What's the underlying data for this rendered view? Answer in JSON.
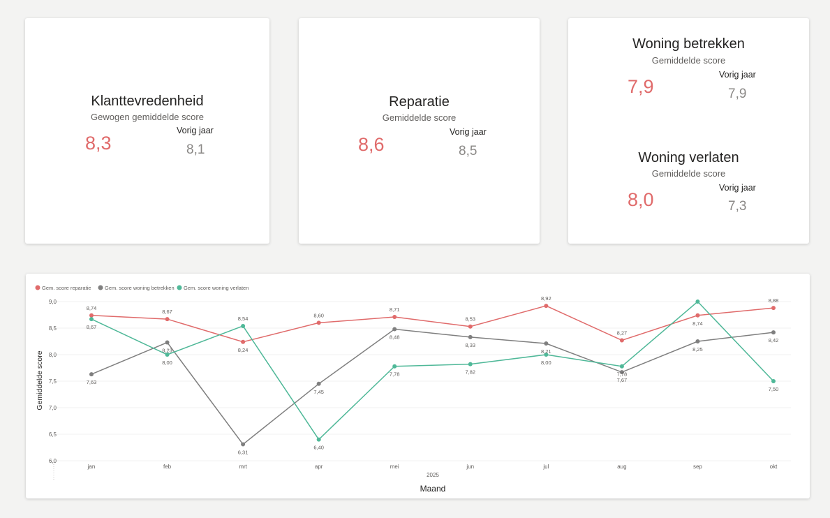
{
  "cards": {
    "klant": {
      "title": "Klanttevredenheid",
      "subtitle": "Gewogen gemiddelde score",
      "value": "8,3",
      "prev_label": "Vorig jaar",
      "prev_value": "8,1"
    },
    "reparatie": {
      "title": "Reparatie",
      "subtitle": "Gemiddelde score",
      "value": "8,6",
      "prev_label": "Vorig jaar",
      "prev_value": "8,5"
    },
    "betrekken": {
      "title": "Woning betrekken",
      "subtitle": "Gemiddelde score",
      "value": "7,9",
      "prev_label": "Vorig jaar",
      "prev_value": "7,9"
    },
    "verlaten": {
      "title": "Woning verlaten",
      "subtitle": "Gemiddelde score",
      "value": "8,0",
      "prev_label": "Vorig jaar",
      "prev_value": "7,3"
    }
  },
  "colors": {
    "accent_red": "#e06b6b",
    "series_gray": "#7f7f7f",
    "series_green": "#4fb898"
  },
  "chart_data": {
    "type": "line",
    "categories": [
      "jan",
      "feb",
      "mrt",
      "apr",
      "mei",
      "jun",
      "jul",
      "aug",
      "sep",
      "okt"
    ],
    "series": [
      {
        "name": "Gem. score reparatie",
        "color": "#e06b6b",
        "values": [
          8.74,
          8.67,
          8.24,
          8.6,
          8.71,
          8.53,
          8.92,
          8.27,
          8.74,
          8.88
        ],
        "labels": [
          "8,74",
          "8,67",
          "8,24",
          "8,60",
          "8,71",
          "8,53",
          "8,92",
          "8,27",
          "8,74",
          "8,88"
        ]
      },
      {
        "name": "Gem. score woning betrekken",
        "color": "#7f7f7f",
        "values": [
          7.63,
          8.23,
          6.31,
          7.45,
          8.48,
          8.33,
          8.21,
          7.67,
          8.25,
          8.42
        ],
        "labels": [
          "7,63",
          "8,23",
          "6,31",
          "7,45",
          "8,48",
          "8,33",
          "8,21",
          "7,67",
          "8,25",
          "8,42"
        ]
      },
      {
        "name": "Gem. score woning verlaten",
        "color": "#4fb898",
        "values": [
          8.67,
          8.0,
          8.54,
          6.4,
          7.78,
          7.82,
          8.0,
          7.78,
          9.0,
          7.5
        ],
        "labels": [
          "8,67",
          "8,00",
          "8,54",
          "6,40",
          "7,78",
          "7,82",
          "8,00",
          "7,78",
          null,
          "7,50"
        ]
      }
    ],
    "xlabel": "Maand",
    "x_sublabel": "2025",
    "ylabel": "Gemiddelde score",
    "ylim": [
      6.0,
      9.0
    ],
    "yticks": [
      "6,0",
      "6,5",
      "7,0",
      "7,5",
      "8,0",
      "8,5",
      "9,0"
    ],
    "ytick_values": [
      6.0,
      6.5,
      7.0,
      7.5,
      8.0,
      8.5,
      9.0
    ],
    "legend": "top-left"
  }
}
